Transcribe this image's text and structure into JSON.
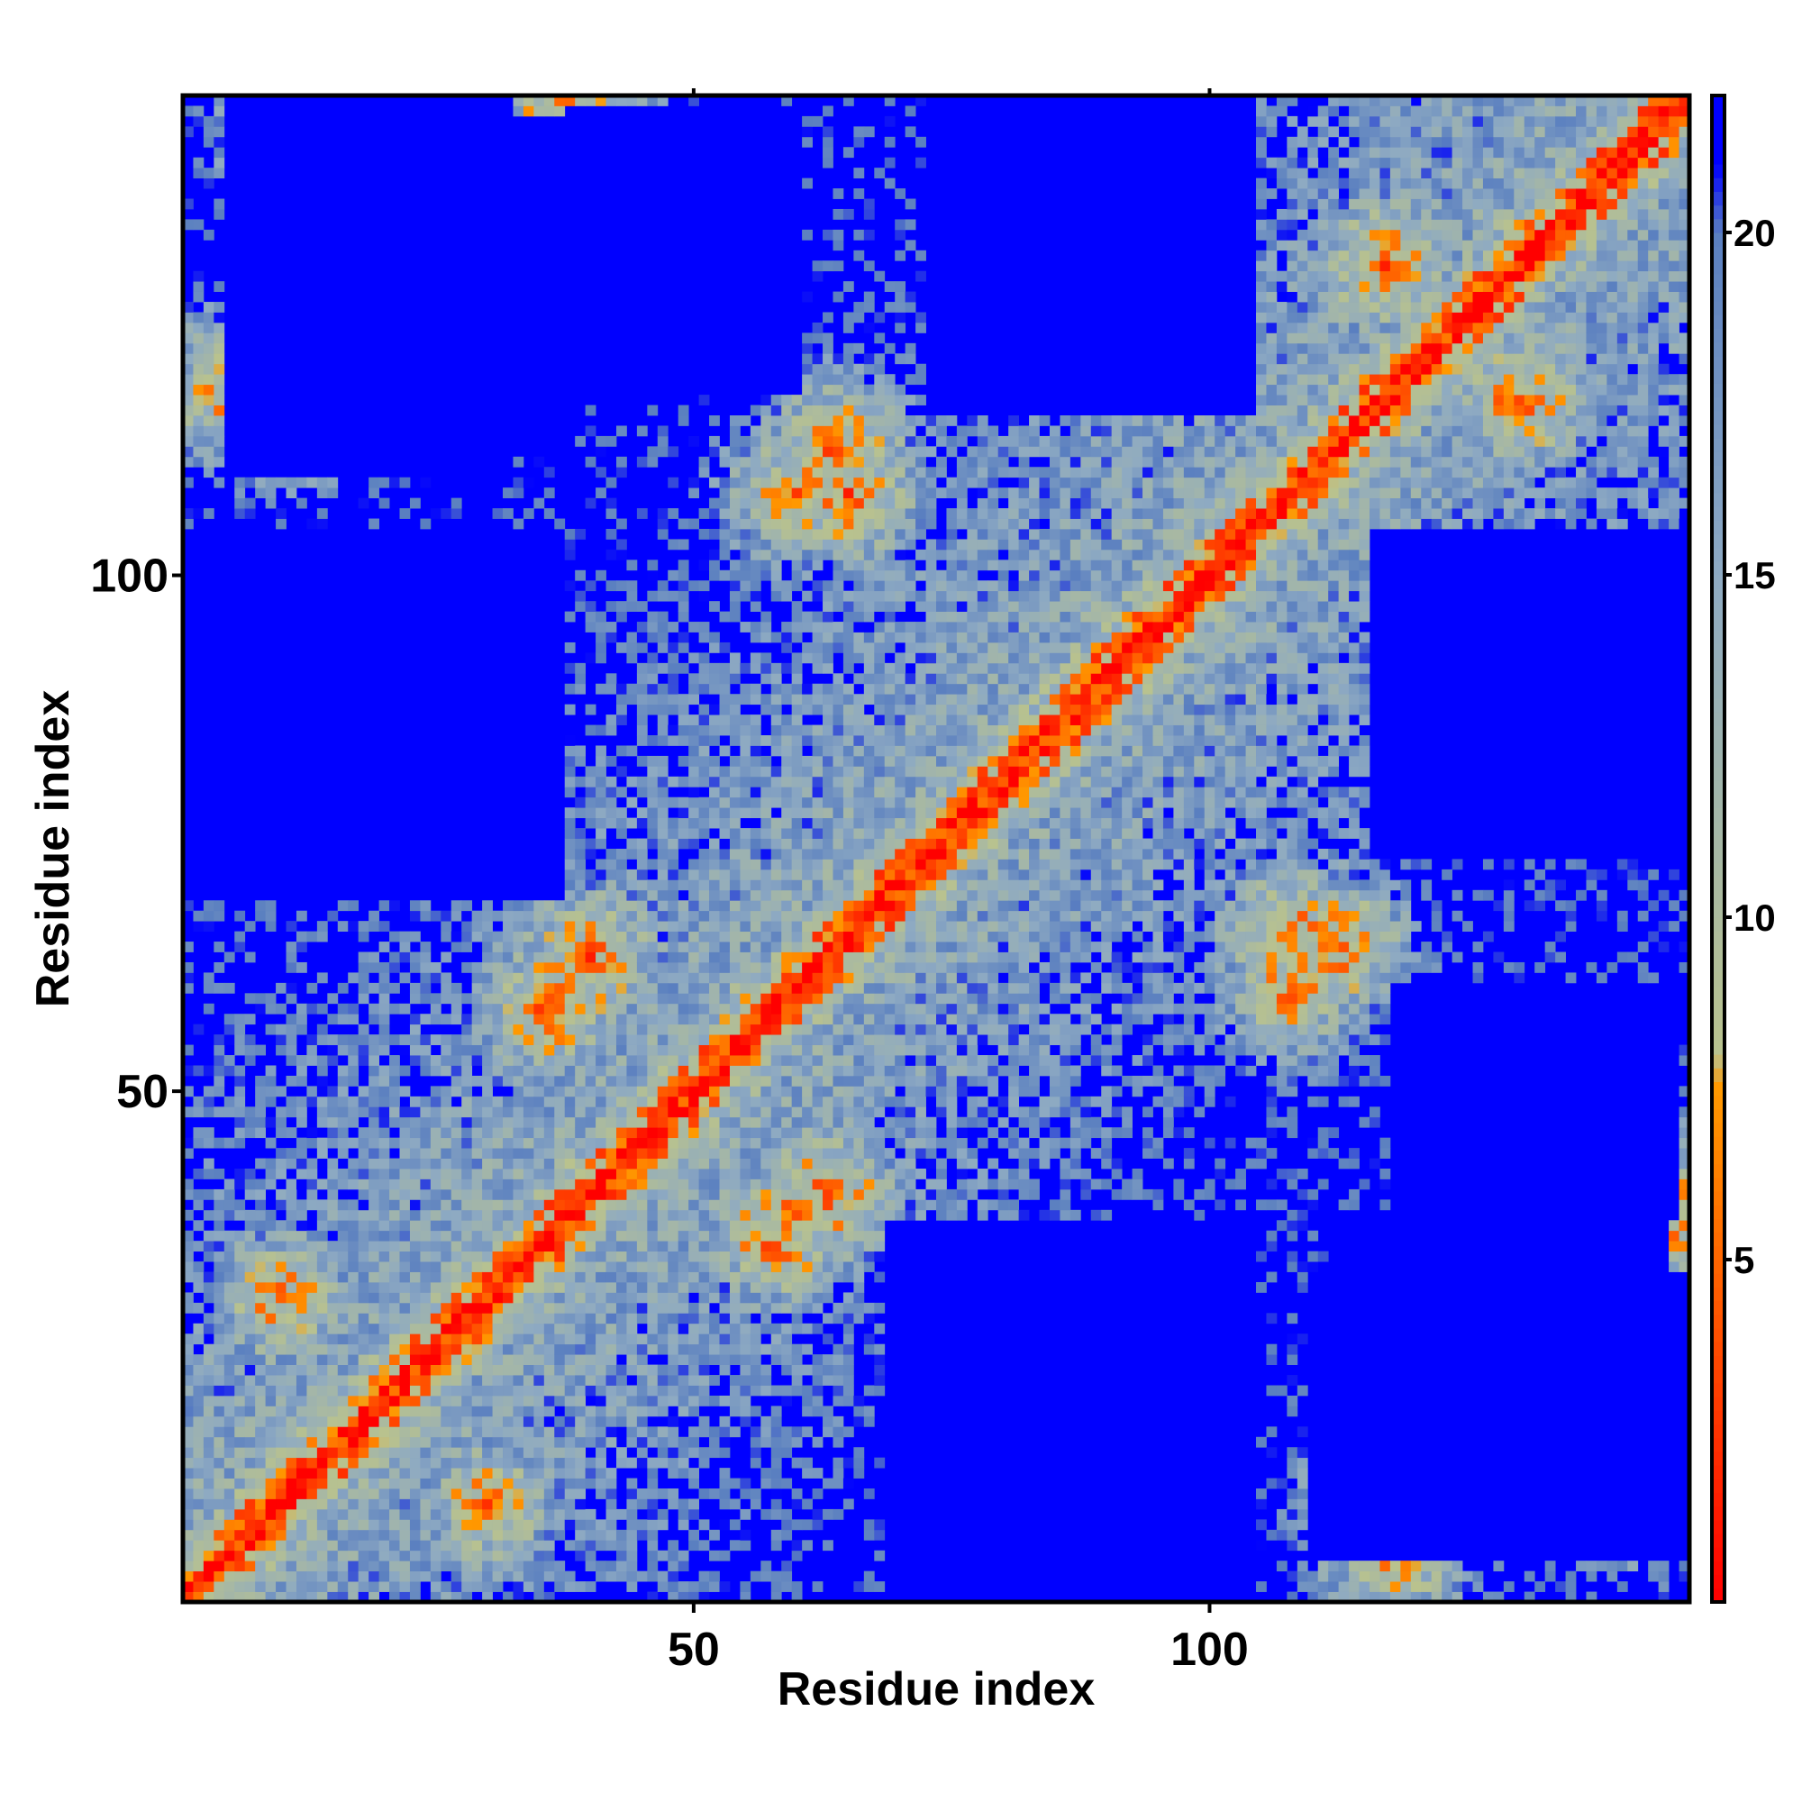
{
  "chart_data": {
    "type": "heatmap",
    "title": "",
    "xlabel": "Residue index",
    "ylabel": "Residue index",
    "x_range": [
      1,
      146
    ],
    "y_range": [
      1,
      146
    ],
    "x_ticks": [
      50,
      100
    ],
    "y_ticks": [
      50,
      100
    ],
    "x_tick_labels": [
      "50",
      "100"
    ],
    "y_tick_labels": [
      "50",
      "100"
    ],
    "grid": false,
    "value_range": [
      0,
      22
    ],
    "colorbar": {
      "ticks": [
        5,
        10,
        15,
        20
      ],
      "tick_labels": [
        "5",
        "10",
        "15",
        "20"
      ],
      "placement": "right",
      "stops": [
        {
          "value": 0,
          "color": "#ff0000"
        },
        {
          "value": 7.5,
          "color": "#ff9900"
        },
        {
          "value": 8,
          "color": "#b9c28e"
        },
        {
          "value": 15,
          "color": "#8eaac2"
        },
        {
          "value": 20,
          "color": "#5a7fc0"
        },
        {
          "value": 21,
          "color": "#0000ff"
        }
      ]
    },
    "cutoff_color": "#0000ff",
    "secondary_contacts": [
      {
        "x": 58,
        "y": 36,
        "value": 5
      },
      {
        "x": 63,
        "y": 40,
        "value": 5
      },
      {
        "x": 36,
        "y": 58,
        "value": 5
      },
      {
        "x": 40,
        "y": 63,
        "value": 5
      },
      {
        "x": 112,
        "y": 64,
        "value": 5
      },
      {
        "x": 108,
        "y": 60,
        "value": 6
      },
      {
        "x": 64,
        "y": 112,
        "value": 5
      },
      {
        "x": 60,
        "y": 108,
        "value": 6
      },
      {
        "x": 130,
        "y": 117,
        "value": 5
      },
      {
        "x": 117,
        "y": 130,
        "value": 5
      },
      {
        "x": 140,
        "y": 35,
        "value": 5
      },
      {
        "x": 35,
        "y": 140,
        "value": 5
      },
      {
        "x": 142,
        "y": 12,
        "value": 5
      },
      {
        "x": 12,
        "y": 142,
        "value": 5
      },
      {
        "x": 118,
        "y": 5,
        "value": 6
      },
      {
        "x": 5,
        "y": 118,
        "value": 6
      },
      {
        "x": 38,
        "y": 145,
        "value": 5
      },
      {
        "x": 145,
        "y": 38,
        "value": 5
      },
      {
        "x": 14,
        "y": 142,
        "value": 6
      },
      {
        "x": 10,
        "y": 117,
        "value": 5
      },
      {
        "x": 117,
        "y": 10,
        "value": 5
      },
      {
        "x": 65,
        "y": 108,
        "value": 5
      },
      {
        "x": 108,
        "y": 65,
        "value": 5
      },
      {
        "x": 38,
        "y": 60,
        "value": 6
      },
      {
        "x": 60,
        "y": 38,
        "value": 6
      },
      {
        "x": 30,
        "y": 10,
        "value": 6
      },
      {
        "x": 10,
        "y": 30,
        "value": 6
      }
    ],
    "blocked_regions": [
      {
        "x": [
          69,
          104
        ],
        "y": [
          1,
          37
        ]
      },
      {
        "x": [
          1,
          37
        ],
        "y": [
          69,
          104
        ]
      },
      {
        "x": [
          116,
          146
        ],
        "y": [
          73,
          104
        ]
      },
      {
        "x": [
          73,
          104
        ],
        "y": [
          116,
          146
        ]
      },
      {
        "x": [
          110,
          146
        ],
        "y": [
          5,
          32
        ]
      },
      {
        "x": [
          5,
          32
        ],
        "y": [
          110,
          146
        ]
      },
      {
        "x": [
          8,
          38
        ],
        "y": [
          112,
          144
        ]
      },
      {
        "x": [
          112,
          144
        ],
        "y": [
          8,
          38
        ]
      },
      {
        "x": [
          38,
          60
        ],
        "y": [
          118,
          145
        ]
      },
      {
        "x": [
          118,
          145
        ],
        "y": [
          38,
          60
        ]
      }
    ]
  }
}
